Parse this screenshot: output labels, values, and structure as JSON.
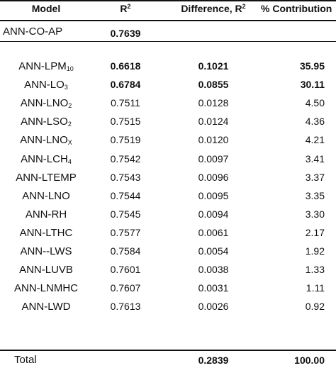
{
  "header": {
    "model": "Model",
    "r2": "R",
    "r2_sup": "2",
    "diff": "Difference, R",
    "diff_sup": "2",
    "contrib": "% Contribution"
  },
  "base": {
    "model": "ANN-CO-AP",
    "r2": "0.7639"
  },
  "rows": [
    {
      "model": "ANN-LPM",
      "sub": "10",
      "r2": "0.6618",
      "diff": "0.1021",
      "contrib": "35.95",
      "bold": true
    },
    {
      "model": "ANN-LO",
      "sub": "3",
      "r2": "0.6784",
      "diff": "0.0855",
      "contrib": "30.11",
      "bold": true
    },
    {
      "model": "ANN-LNO",
      "sub": "2",
      "r2": "0.7511",
      "diff": "0.0128",
      "contrib": "4.50"
    },
    {
      "model": "ANN-LSO",
      "sub": "2",
      "r2": "0.7515",
      "diff": "0.0124",
      "contrib": "4.36"
    },
    {
      "model": "ANN-LNO",
      "sub": "X",
      "r2": "0.7519",
      "diff": "0.0120",
      "contrib": "4.21"
    },
    {
      "model": "ANN-LCH",
      "sub": "4",
      "r2": "0.7542",
      "diff": "0.0097",
      "contrib": "3.41"
    },
    {
      "model": "ANN-LTEMP",
      "sub": "",
      "r2": "0.7543",
      "diff": "0.0096",
      "contrib": "3.37"
    },
    {
      "model": "ANN-LNO",
      "sub": "",
      "r2": "0.7544",
      "diff": "0.0095",
      "contrib": "3.35"
    },
    {
      "model": "ANN-RH",
      "sub": "",
      "r2": "0.7545",
      "diff": "0.0094",
      "contrib": "3.30"
    },
    {
      "model": "ANN-LTHC",
      "sub": "",
      "r2": "0.7577",
      "diff": "0.0061",
      "contrib": "2.17"
    },
    {
      "model": "ANN--LWS",
      "sub": "",
      "r2": "0.7584",
      "diff": "0.0054",
      "contrib": "1.92"
    },
    {
      "model": "ANN-LUVB",
      "sub": "",
      "r2": "0.7601",
      "diff": "0.0038",
      "contrib": "1.33"
    },
    {
      "model": "ANN-LNMHC",
      "sub": "",
      "r2": "0.7607",
      "diff": "0.0031",
      "contrib": "1.11"
    },
    {
      "model": "ANN-LWD",
      "sub": "",
      "r2": "0.7613",
      "diff": "0.0026",
      "contrib": "0.92"
    }
  ],
  "total": {
    "model": "Total",
    "diff": "0.2839",
    "contrib": "100.00"
  }
}
